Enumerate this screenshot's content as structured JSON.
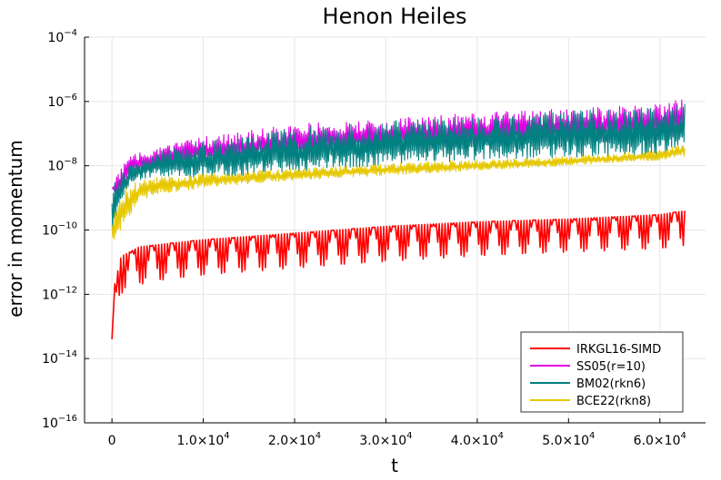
{
  "chart_data": {
    "type": "line",
    "title": "Henon Heiles",
    "xlabel": "t",
    "ylabel": "error in momentum",
    "yscale": "log",
    "xlim": [
      -3000,
      65000
    ],
    "ylim": [
      1e-16,
      0.0001
    ],
    "grid": true,
    "legend_position": "bottom-right",
    "x_ticks": [
      {
        "value": 0,
        "mant": "0",
        "exp": ""
      },
      {
        "value": 10000,
        "mant": "1.0×10",
        "exp": "4"
      },
      {
        "value": 20000,
        "mant": "2.0×10",
        "exp": "4"
      },
      {
        "value": 30000,
        "mant": "3.0×10",
        "exp": "4"
      },
      {
        "value": 40000,
        "mant": "4.0×10",
        "exp": "4"
      },
      {
        "value": 50000,
        "mant": "5.0×10",
        "exp": "4"
      },
      {
        "value": 60000,
        "mant": "6.0×10",
        "exp": "4"
      }
    ],
    "y_ticks": [
      {
        "value": -16,
        "mant": "10",
        "exp": "−16"
      },
      {
        "value": -14,
        "mant": "10",
        "exp": "−14"
      },
      {
        "value": -12,
        "mant": "10",
        "exp": "−12"
      },
      {
        "value": -10,
        "mant": "10",
        "exp": "−10"
      },
      {
        "value": -8,
        "mant": "10",
        "exp": "−8"
      },
      {
        "value": -6,
        "mant": "10",
        "exp": "−6"
      },
      {
        "value": -4,
        "mant": "10",
        "exp": "−4"
      }
    ],
    "series": [
      {
        "name": "SS05(r=10)",
        "color": "#e200e2",
        "band_upper": [
          [
            0,
            2.2e-09
          ],
          [
            500,
            6e-09
          ],
          [
            2000,
            2e-08
          ],
          [
            5000,
            4e-08
          ],
          [
            10000,
            8e-08
          ],
          [
            20000,
            2e-07
          ],
          [
            30000,
            3e-07
          ],
          [
            40000,
            4.5e-07
          ],
          [
            50000,
            6e-07
          ],
          [
            60000,
            9e-07
          ],
          [
            62800,
            1.3e-06
          ]
        ],
        "band_lower": [
          [
            0,
            1.8e-09
          ],
          [
            500,
            1e-09
          ],
          [
            2000,
            5e-09
          ],
          [
            5000,
            8e-09
          ],
          [
            10000,
            1.2e-08
          ],
          [
            20000,
            2e-08
          ],
          [
            30000,
            3e-08
          ],
          [
            40000,
            4e-08
          ],
          [
            50000,
            5e-08
          ],
          [
            60000,
            6e-08
          ],
          [
            62800,
            8e-08
          ]
        ]
      },
      {
        "name": "BM02(rkn6)",
        "color": "#008080",
        "band_upper": [
          [
            0,
            3e-09
          ],
          [
            500,
            5e-09
          ],
          [
            2000,
            1e-08
          ],
          [
            5000,
            3e-08
          ],
          [
            10000,
            6e-08
          ],
          [
            20000,
            1.5e-07
          ],
          [
            30000,
            2.5e-07
          ],
          [
            40000,
            3.5e-07
          ],
          [
            50000,
            5e-07
          ],
          [
            60000,
            7e-07
          ],
          [
            62800,
            9e-07
          ]
        ],
        "band_lower": [
          [
            0,
            5e-11
          ],
          [
            500,
            3e-10
          ],
          [
            2000,
            3e-09
          ],
          [
            5000,
            5e-09
          ],
          [
            10000,
            4e-09
          ],
          [
            20000,
            6e-09
          ],
          [
            30000,
            1e-08
          ],
          [
            40000,
            1.5e-08
          ],
          [
            50000,
            1.8e-08
          ],
          [
            60000,
            2e-08
          ],
          [
            62800,
            2.5e-08
          ]
        ]
      },
      {
        "name": "BCE22(rkn8)",
        "color": "#e6c800",
        "band_upper": [
          [
            0,
            1.5e-10
          ],
          [
            1000,
            2e-09
          ],
          [
            3000,
            3.5e-09
          ],
          [
            5000,
            5e-09
          ],
          [
            10000,
            6e-09
          ],
          [
            20000,
            8e-09
          ],
          [
            30000,
            1.2e-08
          ],
          [
            40000,
            1.5e-08
          ],
          [
            50000,
            2e-08
          ],
          [
            60000,
            3e-08
          ],
          [
            62800,
            5e-08
          ]
        ],
        "band_lower": [
          [
            0,
            3e-11
          ],
          [
            1000,
            1e-10
          ],
          [
            3000,
            8e-10
          ],
          [
            5000,
            1.3e-09
          ],
          [
            10000,
            2e-09
          ],
          [
            20000,
            3.5e-09
          ],
          [
            30000,
            5e-09
          ],
          [
            40000,
            7e-09
          ],
          [
            50000,
            1e-08
          ],
          [
            60000,
            1.5e-08
          ],
          [
            62800,
            2e-08
          ]
        ]
      },
      {
        "name": "IRKGL16-SIMD",
        "color": "#ff0000",
        "band_upper": [
          [
            0,
            4e-14
          ],
          [
            300,
            2e-12
          ],
          [
            1000,
            1.5e-11
          ],
          [
            3000,
            3e-11
          ],
          [
            5000,
            3.5e-11
          ],
          [
            10000,
            5e-11
          ],
          [
            20000,
            8e-11
          ],
          [
            30000,
            1.3e-10
          ],
          [
            40000,
            1.8e-10
          ],
          [
            50000,
            2.2e-10
          ],
          [
            60000,
            3e-10
          ],
          [
            62800,
            4e-10
          ]
        ],
        "band_lower": [
          [
            0,
            1e-15
          ],
          [
            300,
            3e-13
          ],
          [
            1000,
            8e-13
          ],
          [
            3000,
            1.5e-12
          ],
          [
            5000,
            2e-12
          ],
          [
            10000,
            3e-12
          ],
          [
            20000,
            5e-12
          ],
          [
            30000,
            8e-12
          ],
          [
            40000,
            1.2e-11
          ],
          [
            50000,
            1.6e-11
          ],
          [
            60000,
            2e-11
          ],
          [
            62800,
            2.5e-11
          ]
        ]
      }
    ]
  }
}
